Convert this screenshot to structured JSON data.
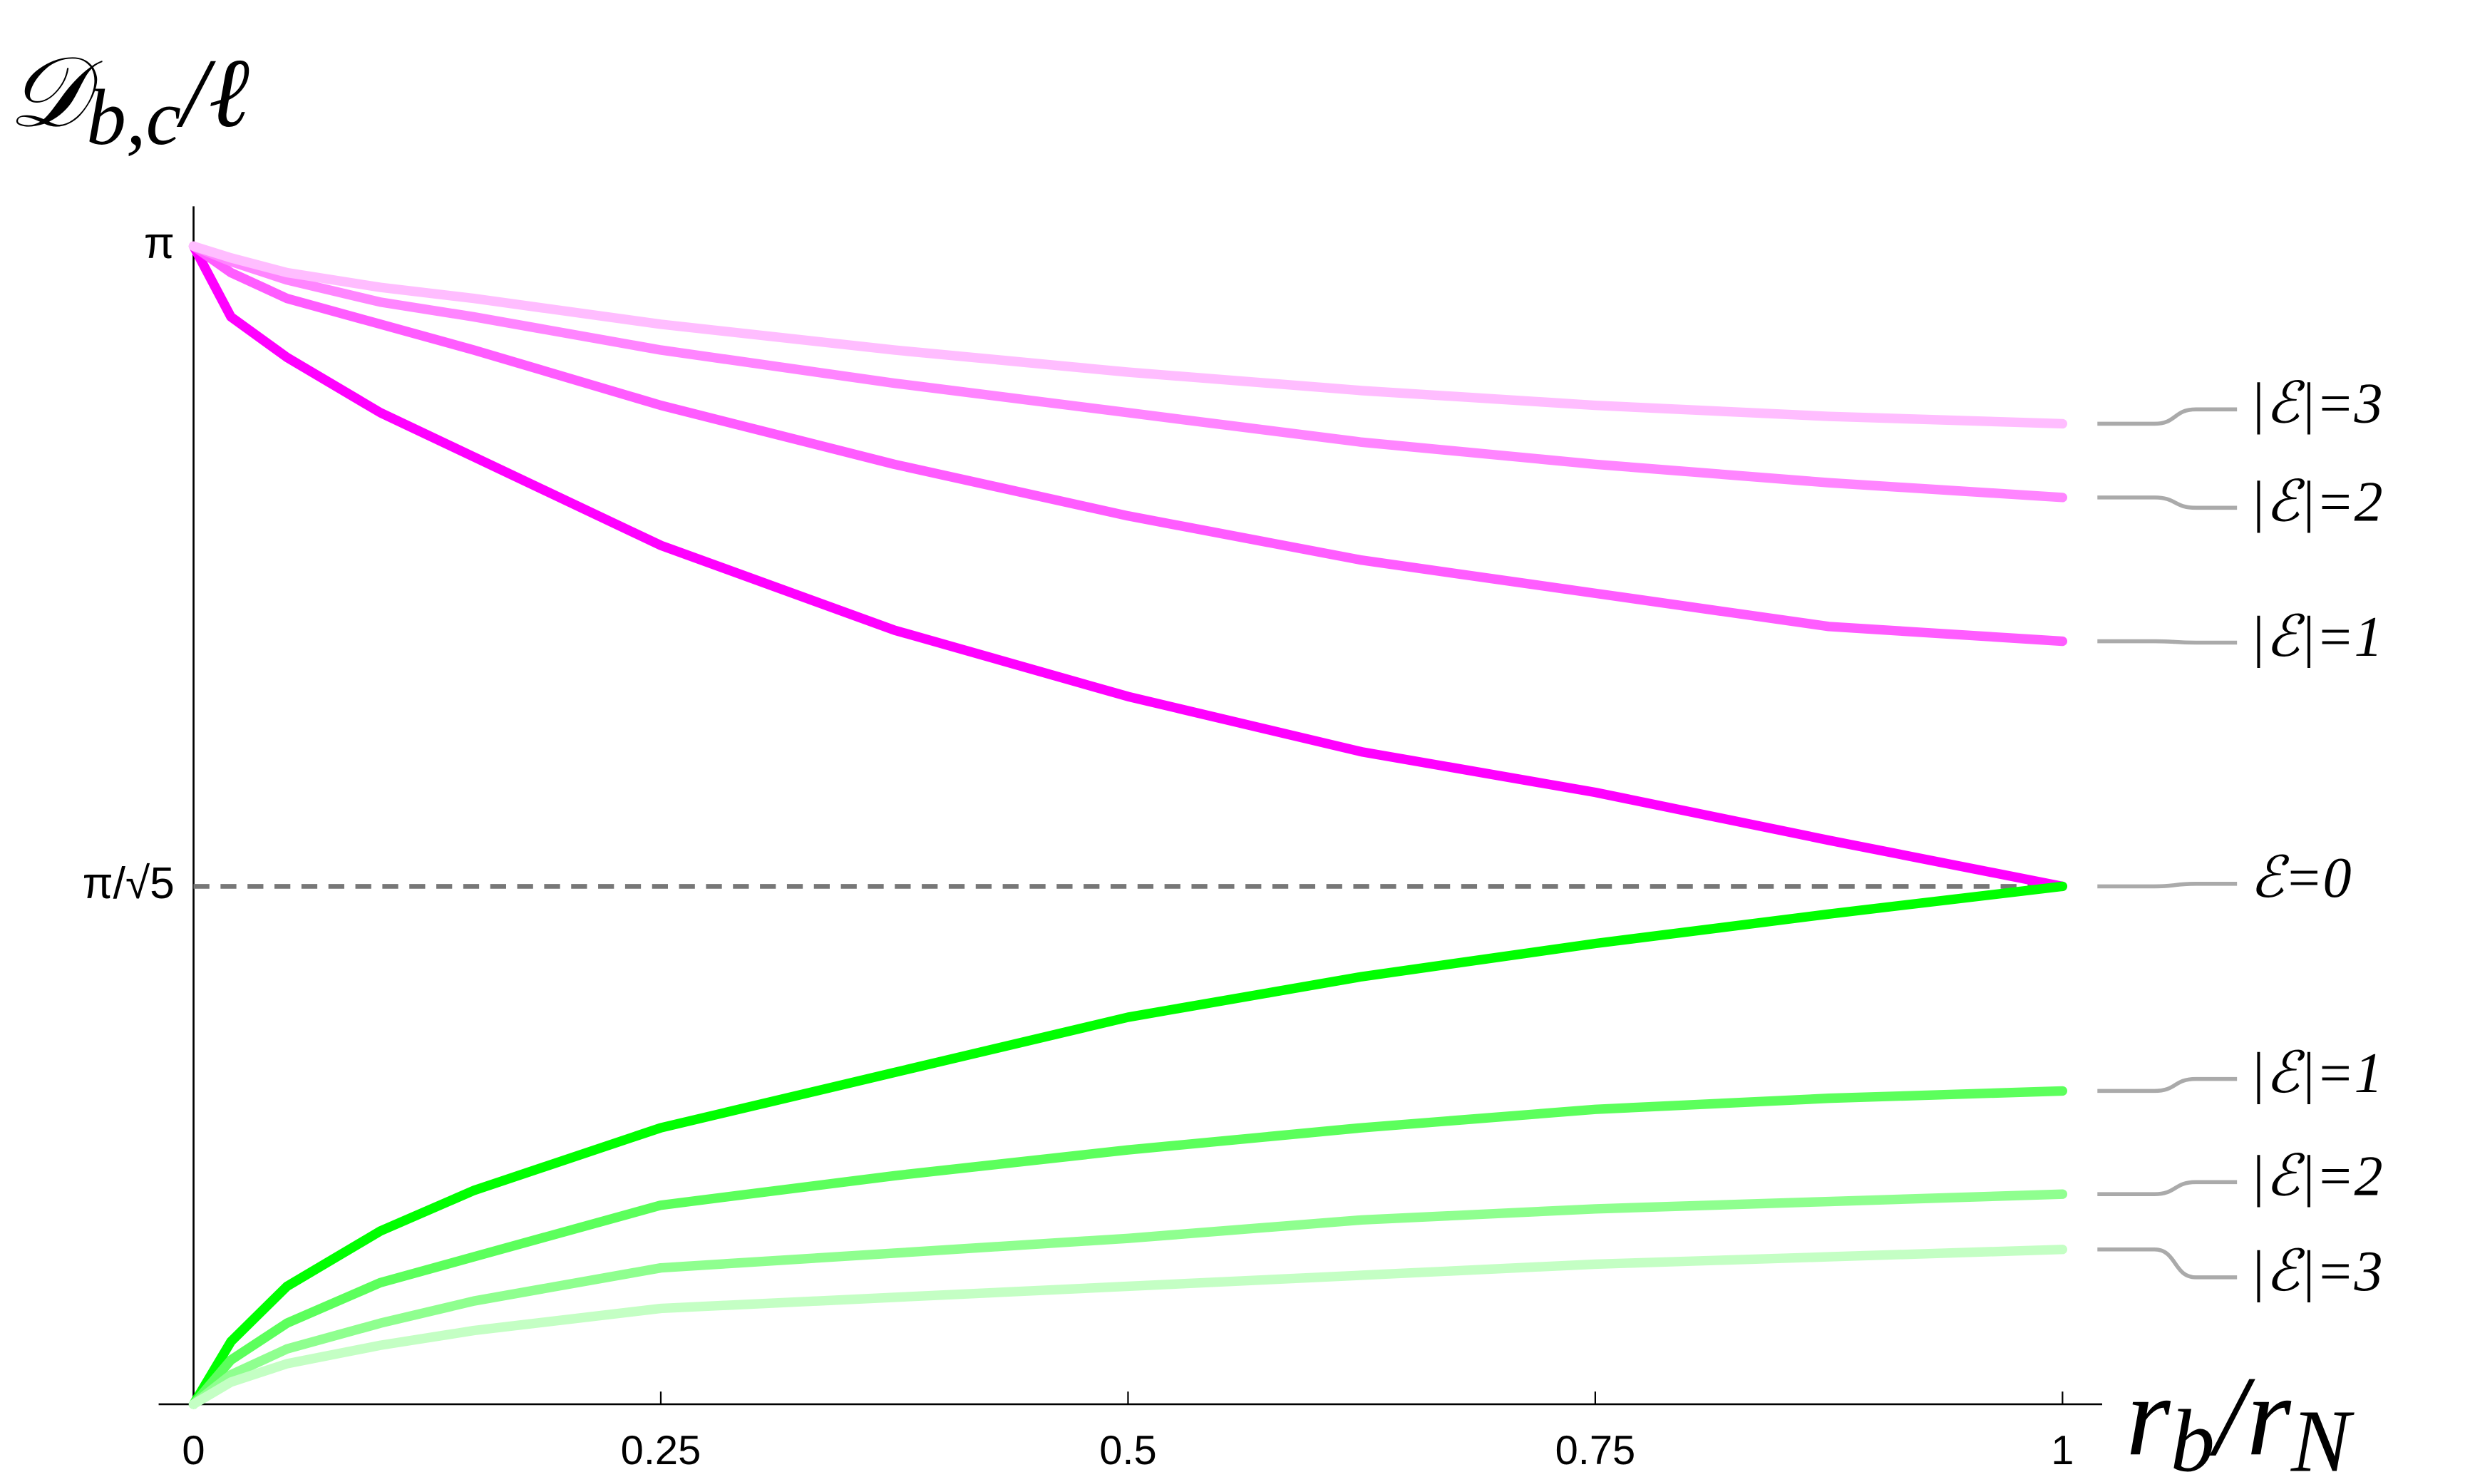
{
  "chart_data": {
    "type": "line",
    "ylabel": [
      "𝒟",
      "b,c",
      "/ℓ"
    ],
    "xlabel": [
      "r",
      "b",
      "/r",
      "N"
    ],
    "x": [
      0,
      0.02,
      0.05,
      0.1,
      0.15,
      0.25,
      0.375,
      0.5,
      0.625,
      0.75,
      0.875,
      1
    ],
    "xlim": [
      0,
      1
    ],
    "xticks": [
      0,
      0.25,
      0.5,
      0.75,
      1
    ],
    "ylim": [
      0,
      3.25
    ],
    "yticks": [
      {
        "value": 3.1416,
        "label": "π"
      },
      {
        "value": 1.405,
        "label": "π/√5"
      }
    ],
    "hlines": [
      {
        "y": 1.405,
        "style": "dashed",
        "color": "#777777"
      }
    ],
    "series": [
      {
        "name": "ℰ=0",
        "color": "#ff00ff",
        "values": [
          3.1416,
          2.95,
          2.84,
          2.69,
          2.57,
          2.33,
          2.1,
          1.92,
          1.77,
          1.66,
          1.53,
          1.405
        ]
      },
      {
        "name": "|ℰ|=1",
        "color": "#ff5cff",
        "values": [
          3.1416,
          3.07,
          3.0,
          2.93,
          2.86,
          2.71,
          2.55,
          2.41,
          2.29,
          2.2,
          2.11,
          2.07
        ]
      },
      {
        "name": "|ℰ|=2",
        "color": "#ff85ff",
        "values": [
          3.1416,
          3.1,
          3.05,
          2.99,
          2.95,
          2.86,
          2.77,
          2.69,
          2.61,
          2.55,
          2.5,
          2.46
        ]
      },
      {
        "name": "|ℰ|=3",
        "color": "#ffbdff",
        "values": [
          3.1416,
          3.11,
          3.07,
          3.03,
          3.0,
          2.93,
          2.86,
          2.8,
          2.75,
          2.71,
          2.68,
          2.66
        ]
      },
      {
        "color": "#00ff00",
        "values": [
          0,
          0.17,
          0.32,
          0.47,
          0.58,
          0.75,
          0.9,
          1.05,
          1.16,
          1.25,
          1.33,
          1.405
        ]
      },
      {
        "name": "|ℰ|=1",
        "color": "#5cff5c",
        "values": [
          0,
          0.12,
          0.22,
          0.33,
          0.4,
          0.54,
          0.62,
          0.69,
          0.75,
          0.8,
          0.83,
          0.85
        ]
      },
      {
        "name": "|ℰ|=2",
        "color": "#8fff8f",
        "values": [
          0,
          0.08,
          0.15,
          0.22,
          0.28,
          0.37,
          0.41,
          0.45,
          0.5,
          0.53,
          0.55,
          0.57
        ]
      },
      {
        "name": "|ℰ|=3",
        "color": "#c4ffc4",
        "values": [
          0,
          0.06,
          0.11,
          0.16,
          0.2,
          0.26,
          0.29,
          0.32,
          0.35,
          0.38,
          0.4,
          0.42
        ]
      }
    ]
  }
}
